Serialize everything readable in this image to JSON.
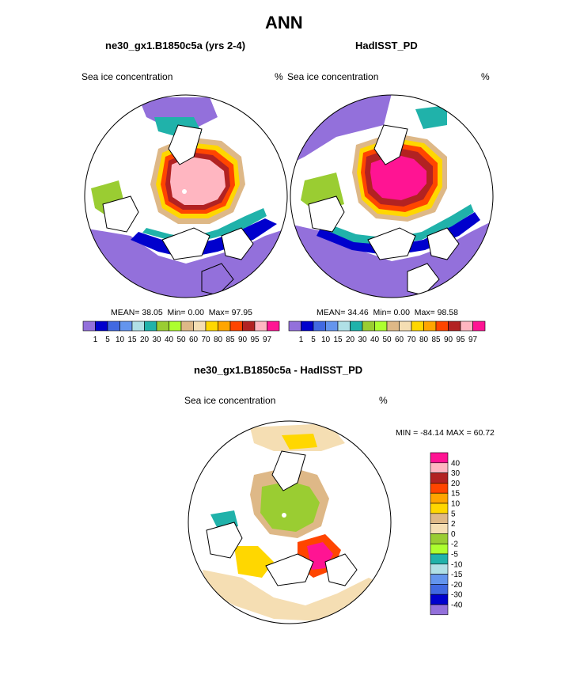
{
  "title": "ANN",
  "colors": {
    "pal_main": [
      "#9370db",
      "#0000cd",
      "#4169e1",
      "#6495ed",
      "#b0e0e6",
      "#20b2aa",
      "#9acd32",
      "#adff2f",
      "#deb887",
      "#f5deb3",
      "#ffd700",
      "#ffa500",
      "#ff4500",
      "#b22222",
      "#ffb6c1",
      "#ff1493"
    ],
    "pal_diff": [
      "#ff1493",
      "#ffb6c1",
      "#b22222",
      "#ff4500",
      "#ffa500",
      "#ffd700",
      "#deb887",
      "#f5deb3",
      "#9acd32",
      "#adff2f",
      "#20b2aa",
      "#b0e0e6",
      "#6495ed",
      "#4169e1",
      "#0000cd",
      "#9370db"
    ],
    "land": "#ffffff"
  },
  "chart_data": [
    {
      "type": "heatmap",
      "title": "ne30_gx1.B1850c5a (yrs 2-4)",
      "left_label": "Sea ice concentration",
      "right_label": "%",
      "mean_label": "MEAN=",
      "mean": "38.05",
      "min_label": "Min=",
      "min": "0.00",
      "max_label": "Max=",
      "max": "97.95",
      "colorbar_levels": [
        "1",
        "5",
        "10",
        "15",
        "20",
        "30",
        "40",
        "50",
        "60",
        "70",
        "80",
        "85",
        "90",
        "95",
        "97"
      ]
    },
    {
      "type": "heatmap",
      "title": "HadISST_PD",
      "left_label": "Sea ice concentration",
      "right_label": "%",
      "mean_label": "MEAN=",
      "mean": "34.46",
      "min_label": "Min=",
      "min": "0.00",
      "max_label": "Max=",
      "max": "98.58",
      "colorbar_levels": [
        "1",
        "5",
        "10",
        "15",
        "20",
        "30",
        "40",
        "50",
        "60",
        "70",
        "80",
        "85",
        "90",
        "95",
        "97"
      ]
    },
    {
      "type": "heatmap",
      "title": "ne30_gx1.B1850c5a - HadISST_PD",
      "left_label": "Sea ice concentration",
      "right_label": "%",
      "minmax_text": "MIN = -84.14 MAX =  60.72",
      "colorbar_levels": [
        "40",
        "30",
        "20",
        "15",
        "10",
        "5",
        "2",
        "0",
        "-2",
        "-5",
        "-10",
        "-15",
        "-20",
        "-30",
        "-40"
      ]
    }
  ]
}
